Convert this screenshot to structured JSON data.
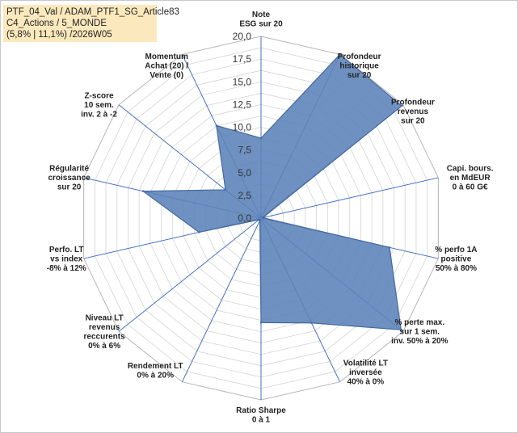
{
  "title_box": {
    "line1": "PTF_04_Val / ADAM_PTF1_SG_Article83",
    "line2": "C4_Actions / 5_MONDE",
    "line3": "(5,8% | 11,1%) /2026W05"
  },
  "chart_data": {
    "type": "radar",
    "r_min": 0,
    "r_max": 20,
    "r_ticks": [
      "0,0",
      "2,5",
      "5,0",
      "7,5",
      "10,0",
      "12,5",
      "15,0",
      "17,5",
      "20,0"
    ],
    "grid_rings": 16,
    "axes": [
      {
        "lines": [
          "Note",
          "ESG sur 20"
        ],
        "value": 8.8
      },
      {
        "lines": [
          "Profondeur",
          "historique",
          "sur 20"
        ],
        "value": 20.0
      },
      {
        "lines": [
          "Profondeur",
          "revenus",
          "sur 20"
        ],
        "value": 19.8
      },
      {
        "lines": [
          "Capi. bours.",
          "en MdEUR",
          "0 à 60 G€"
        ],
        "value": 0.2
      },
      {
        "lines": [
          "% perfo 1A",
          "positive",
          "50% à 80%"
        ],
        "value": 14.5
      },
      {
        "lines": [
          "% perte max.",
          "sur 1 sem.",
          "inv. 50% à 20%"
        ],
        "value": 19.7
      },
      {
        "lines": [
          "Volatilité LT",
          "inversée",
          "40% à 0%"
        ],
        "value": 12.8
      },
      {
        "lines": [
          "Ratio Sharpe",
          "0 à 1"
        ],
        "value": 11.5
      },
      {
        "lines": [
          "Rendement LT",
          "0% à 20%"
        ],
        "value": 0.3
      },
      {
        "lines": [
          "Niveau LT",
          "revenus",
          "reccurents",
          "0% à 6%"
        ],
        "value": 0.3
      },
      {
        "lines": [
          "Perfo. LT",
          "vs index",
          "-8% à 12%"
        ],
        "value": 7.0
      },
      {
        "lines": [
          "Régularité",
          "croissance",
          "sur 20"
        ],
        "value": 13.3
      },
      {
        "lines": [
          "Z-score",
          "10 sem.",
          "inv. 2 à -2"
        ],
        "value": 5.0
      },
      {
        "lines": [
          "Momentum",
          "Achat (20) /",
          "Vente (0)"
        ],
        "value": 11.3
      }
    ],
    "colors": {
      "fill": "#5b82b8",
      "stroke": "#44699e",
      "grid": "#d4d4d4",
      "axis": "#4472c4"
    }
  }
}
